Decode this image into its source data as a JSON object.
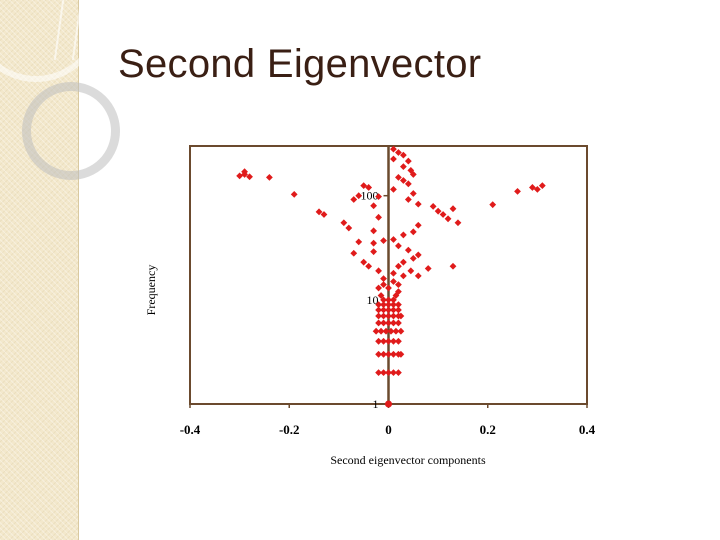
{
  "slide": {
    "title": "Second Eigenvector"
  },
  "colors": {
    "marker": "#e01b1b",
    "axis_line": "#6b4a2e",
    "frame": "#6b4a2e",
    "title": "#3a1f14",
    "band": "#f3e8cc"
  },
  "chart_data": {
    "type": "scatter",
    "title": "",
    "xlabel": "Second eigenvector components",
    "ylabel": "Frequency",
    "xlim": [
      -0.4,
      0.4
    ],
    "ylim": [
      1,
      300
    ],
    "yscale": "log",
    "grid": false,
    "legend": "none",
    "x_ticks": [
      "-0.4",
      "-0.2",
      "0",
      "0.2",
      "0.4"
    ],
    "x_tick_values": [
      -0.4,
      -0.2,
      0,
      0.2,
      0.4
    ],
    "y_ticks": [
      "1",
      "10",
      "100"
    ],
    "y_tick_values": [
      1,
      10,
      100
    ],
    "series": [
      {
        "points": [
          [
            -0.29,
            170
          ],
          [
            -0.3,
            155
          ],
          [
            -0.29,
            160
          ],
          [
            -0.28,
            152
          ],
          [
            -0.24,
            150
          ],
          [
            -0.19,
            103
          ],
          [
            -0.14,
            70
          ],
          [
            -0.13,
            66
          ],
          [
            -0.09,
            55
          ],
          [
            -0.08,
            49
          ],
          [
            -0.07,
            92
          ],
          [
            -0.06,
            100
          ],
          [
            -0.05,
            125
          ],
          [
            -0.04,
            120
          ],
          [
            -0.03,
            80
          ],
          [
            -0.02,
            98
          ],
          [
            -0.02,
            62
          ],
          [
            -0.03,
            46
          ],
          [
            -0.01,
            37
          ],
          [
            -0.03,
            35
          ],
          [
            -0.06,
            36
          ],
          [
            -0.07,
            28
          ],
          [
            -0.05,
            23
          ],
          [
            -0.04,
            21
          ],
          [
            -0.03,
            29
          ],
          [
            -0.02,
            19
          ],
          [
            -0.01,
            16
          ],
          [
            0.01,
            280
          ],
          [
            0.02,
            260
          ],
          [
            0.03,
            245
          ],
          [
            0.01,
            225
          ],
          [
            0.04,
            215
          ],
          [
            0.03,
            190
          ],
          [
            0.045,
            175
          ],
          [
            0.05,
            160
          ],
          [
            0.02,
            150
          ],
          [
            0.03,
            140
          ],
          [
            0.04,
            130
          ],
          [
            0.01,
            115
          ],
          [
            0.05,
            105
          ],
          [
            0.04,
            92
          ],
          [
            0.06,
            83
          ],
          [
            0.09,
            79
          ],
          [
            0.1,
            71
          ],
          [
            0.11,
            66
          ],
          [
            0.12,
            60
          ],
          [
            0.13,
            75
          ],
          [
            0.14,
            55
          ],
          [
            0.06,
            52
          ],
          [
            0.05,
            45
          ],
          [
            0.03,
            42
          ],
          [
            0.01,
            38
          ],
          [
            0.02,
            33
          ],
          [
            0.04,
            30
          ],
          [
            0.06,
            27
          ],
          [
            0.05,
            25
          ],
          [
            0.03,
            23
          ],
          [
            0.02,
            21
          ],
          [
            0.045,
            19
          ],
          [
            0.06,
            17
          ],
          [
            0.08,
            20
          ],
          [
            0.13,
            21
          ],
          [
            0.21,
            82
          ],
          [
            0.26,
            110
          ],
          [
            0.29,
            120
          ],
          [
            0.3,
            115
          ],
          [
            0.31,
            125
          ],
          [
            0.01,
            18
          ],
          [
            0.03,
            17
          ],
          [
            0.01,
            15
          ],
          [
            -0.01,
            14
          ],
          [
            0.02,
            14
          ],
          [
            -0.02,
            13
          ],
          [
            0.0,
            13
          ],
          [
            0.02,
            12
          ],
          [
            -0.015,
            11
          ],
          [
            0.015,
            11
          ],
          [
            -0.01,
            10
          ],
          [
            0.01,
            10
          ],
          [
            0.0,
            10
          ]
        ],
        "stacks": [
          {
            "y": 9,
            "x": [
              -0.02,
              -0.01,
              0.0,
              0.01,
              0.02
            ]
          },
          {
            "y": 8,
            "x": [
              -0.02,
              -0.01,
              0.0,
              0.01,
              0.02
            ]
          },
          {
            "y": 7,
            "x": [
              -0.02,
              -0.01,
              0.0,
              0.01,
              0.02,
              0.025
            ]
          },
          {
            "y": 6,
            "x": [
              -0.02,
              -0.01,
              0.0,
              0.01,
              0.02
            ]
          },
          {
            "y": 5,
            "x": [
              -0.025,
              -0.015,
              -0.005,
              0.005,
              0.015,
              0.025
            ]
          },
          {
            "y": 4,
            "x": [
              -0.02,
              -0.01,
              0.0,
              0.01,
              0.02
            ]
          },
          {
            "y": 3,
            "x": [
              -0.02,
              -0.01,
              0.0,
              0.01,
              0.02,
              0.025
            ]
          },
          {
            "y": 2,
            "x": [
              -0.02,
              -0.01,
              0.0,
              0.01,
              0.02
            ]
          },
          {
            "y": 1,
            "x": [
              0.0
            ]
          }
        ]
      }
    ]
  }
}
